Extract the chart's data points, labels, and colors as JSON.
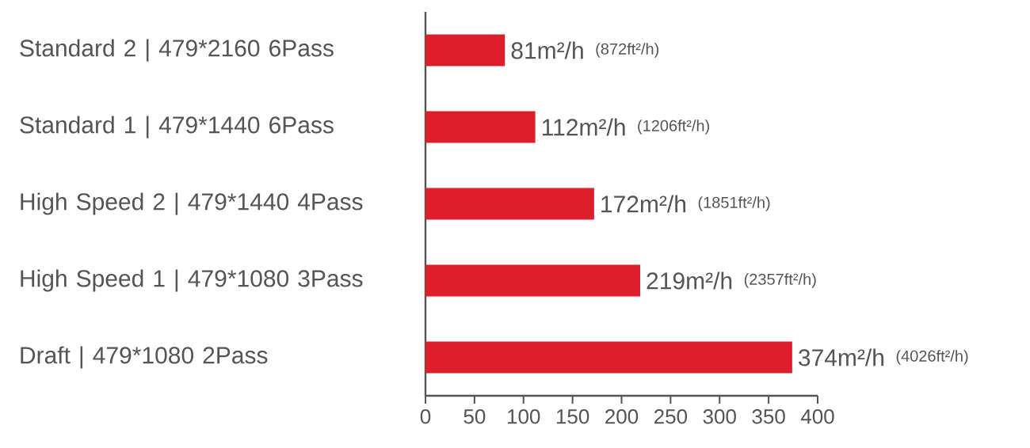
{
  "chart_data": {
    "type": "bar",
    "orientation": "horizontal",
    "categories": [
      "Standard 2 | 479*2160 6Pass",
      "Standard 1 | 479*1440 6Pass",
      "High Speed 2 | 479*1440 4Pass",
      "High Speed 1 | 479*1080 3Pass",
      "Draft | 479*1080 2Pass"
    ],
    "values": [
      81,
      112,
      172,
      219,
      374
    ],
    "value_labels": [
      "81m²/h",
      "112m²/h",
      "172m²/h",
      "219m²/h",
      "374m²/h"
    ],
    "annotations": [
      "(872ft²/h)",
      "(1206ft²/h)",
      "(1851ft²/h)",
      "(2357ft²/h)",
      "(4026ft²/h)"
    ],
    "color": "#dc1f2a",
    "xlim": [
      0,
      400
    ],
    "xticks": [
      0,
      50,
      100,
      150,
      200,
      250,
      300,
      350,
      400
    ]
  }
}
